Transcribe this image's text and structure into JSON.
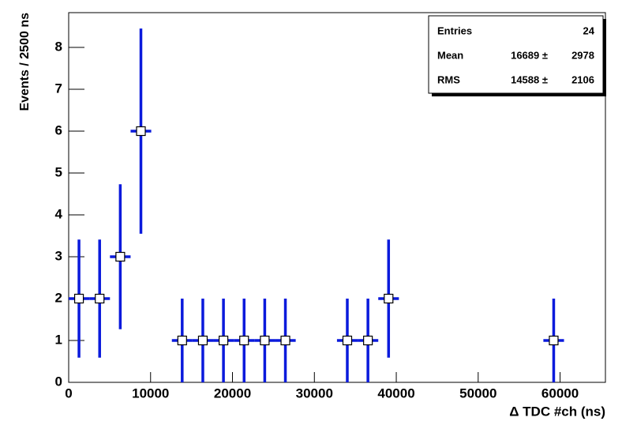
{
  "chart_data": {
    "type": "errorbar",
    "xlabel": "Δ TDC #ch (ns)",
    "ylabel": "Events / 2500 ns",
    "xlim": [
      0,
      65536
    ],
    "ylim": [
      0,
      8.83
    ],
    "xticks": [
      0,
      10000,
      20000,
      30000,
      40000,
      50000,
      60000
    ],
    "yticks": [
      0,
      1,
      2,
      3,
      4,
      5,
      6,
      7,
      8
    ],
    "series": [
      {
        "color": "#0a1adc",
        "x": [
          1260,
          3780,
          6300,
          8820,
          13860,
          16380,
          18900,
          21420,
          23940,
          26460,
          34020,
          36540,
          39060,
          59220
        ],
        "values": [
          2,
          2,
          3,
          6,
          1,
          1,
          1,
          1,
          1,
          1,
          1,
          1,
          2,
          1
        ],
        "yerr": [
          1.41,
          1.41,
          1.73,
          2.45,
          1,
          1,
          1,
          1,
          1,
          1,
          1,
          1,
          1.41,
          1
        ],
        "xerr": 1260
      }
    ],
    "stats": [
      {
        "name": "Entries",
        "value": "24"
      },
      {
        "name": "Mean",
        "value": "16689 ±",
        "error": "2978"
      },
      {
        "name": "RMS",
        "value": "14588 ±",
        "error": "2106"
      }
    ]
  }
}
